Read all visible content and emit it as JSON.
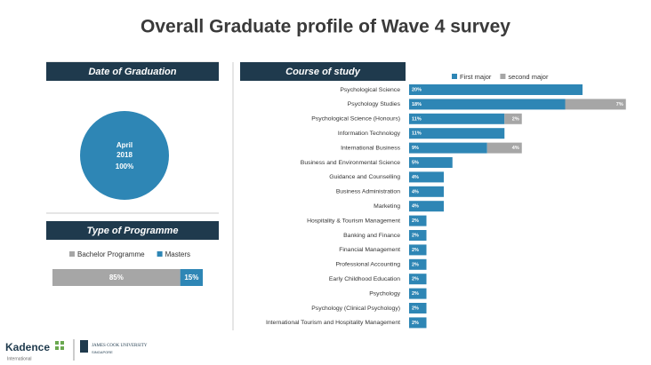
{
  "title": "Overall Graduate profile of Wave 4 survey",
  "footer": {
    "brand": "Kadence",
    "brand_sub": "International",
    "university": "JAMES COOK UNIVERSITY",
    "university_sub": "SINGAPORE"
  },
  "chart_data": [
    {
      "type": "pie",
      "title": "Date of Graduation",
      "categories": [
        "April 2018"
      ],
      "values": [
        100
      ],
      "value_labels": [
        "100%"
      ],
      "colors": [
        "#2e86b5"
      ]
    },
    {
      "type": "stacked-bar",
      "title": "Type of Programme",
      "orientation": "horizontal",
      "legend": "top",
      "series": [
        {
          "name": "Bachelor Programme",
          "color": "#a6a6a6",
          "values": [
            85
          ],
          "value_labels": [
            "85%"
          ]
        },
        {
          "name": "Masters",
          "color": "#2e86b5",
          "values": [
            15
          ],
          "value_labels": [
            "15%"
          ]
        }
      ]
    },
    {
      "type": "hbar",
      "title": "Course of study",
      "legend": "top-right",
      "categories": [
        "Psychological Science",
        "Psychology Studies",
        "Psychological Science (Honours)",
        "Information Technology",
        "International Business",
        "Business and Environmental Science",
        "Guidance and Counselling",
        "Business Administration",
        "Marketing",
        "Hospitality & Tourism Management",
        "Banking and Finance",
        "Financial Management",
        "Professional Accounting",
        "Early Childhood Education",
        "Psychology",
        "Psychology (Clinical Psychology)",
        "International Tourism and Hospitality Management"
      ],
      "series": [
        {
          "name": "First major",
          "color": "#2e86b5",
          "values": [
            20,
            18,
            11,
            11,
            9,
            5,
            4,
            4,
            4,
            2,
            2,
            2,
            2,
            2,
            2,
            2,
            2
          ],
          "value_labels": [
            "20%",
            "18%",
            "11%",
            "11%",
            "9%",
            "5%",
            "4%",
            "4%",
            "4%",
            "2%",
            "2%",
            "2%",
            "2%",
            "2%",
            "2%",
            "2%",
            "2%"
          ]
        },
        {
          "name": "second major",
          "color": "#a6a6a6",
          "values": [
            null,
            7,
            2,
            null,
            4,
            null,
            null,
            null,
            null,
            null,
            null,
            null,
            null,
            null,
            null,
            null,
            null
          ],
          "value_labels": [
            null,
            "7%",
            "2%",
            null,
            "4%",
            null,
            null,
            null,
            null,
            null,
            null,
            null,
            null,
            null,
            null,
            null,
            null
          ]
        }
      ]
    }
  ]
}
